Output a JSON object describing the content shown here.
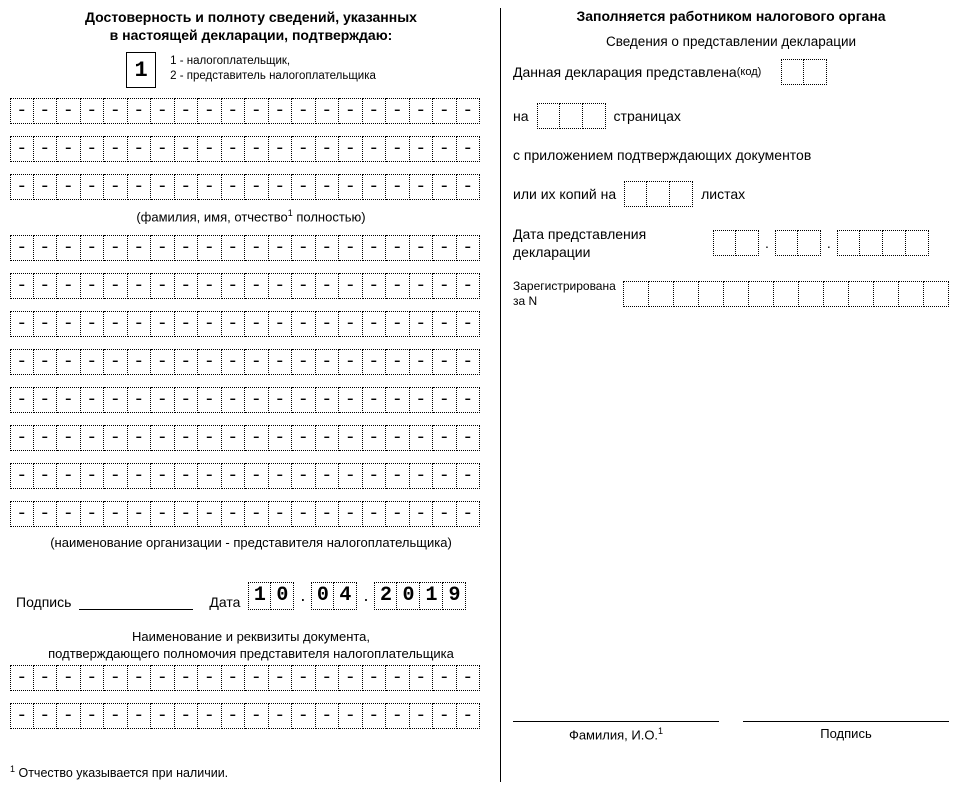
{
  "left": {
    "title_line1": "Достоверность и полноту сведений, указанных",
    "title_line2": "в настоящей декларации, подтверждаю:",
    "type_value": "1",
    "type_note_line1": "1 - налогоплательщик,",
    "type_note_line2": "2 - представитель налогоплательщика",
    "dash_row_20": [
      "-",
      "-",
      "-",
      "-",
      "-",
      "-",
      "-",
      "-",
      "-",
      "-",
      "-",
      "-",
      "-",
      "-",
      "-",
      "-",
      "-",
      "-",
      "-",
      "-"
    ],
    "fio_hint_pre": "(фамилия, имя, отчество",
    "fio_hint_sup": "1",
    "fio_hint_post": " полностью)",
    "sign_label": "Подпись",
    "date_label": "Дата",
    "date_values": {
      "dd": [
        "1",
        "0"
      ],
      "mm": [
        "0",
        "4"
      ],
      "yyyy": [
        "2",
        "0",
        "1",
        "9"
      ]
    },
    "doc_title_line1": "Наименование и реквизиты документа,",
    "doc_title_line2": "подтверждающего полномочия представителя налогоплательщика",
    "footnote_sup": "1",
    "footnote_text": " Отчество указывается при наличии.",
    "org_hint": "(наименование организации - представителя налогоплательщика)"
  },
  "right": {
    "title": "Заполняется работником налогового органа",
    "subtitle": "Сведения о представлении декларации",
    "presented_label": "Данная декларация представлена ",
    "presented_code": "(код)",
    "pages_prefix": "на",
    "pages_suffix": "страницах",
    "attach_line": "с приложением подтверждающих документов",
    "copies_prefix": "или их копий на",
    "copies_suffix": "листах",
    "date_submit_label_line1": "Дата представления",
    "date_submit_label_line2": "декларации",
    "reg_label_line1": "Зарегистрирована",
    "reg_label_line2": "за N",
    "sign_name_label": "Фамилия, И.О.",
    "sign_name_sup": "1",
    "sign_sign_label": "Подпись"
  }
}
